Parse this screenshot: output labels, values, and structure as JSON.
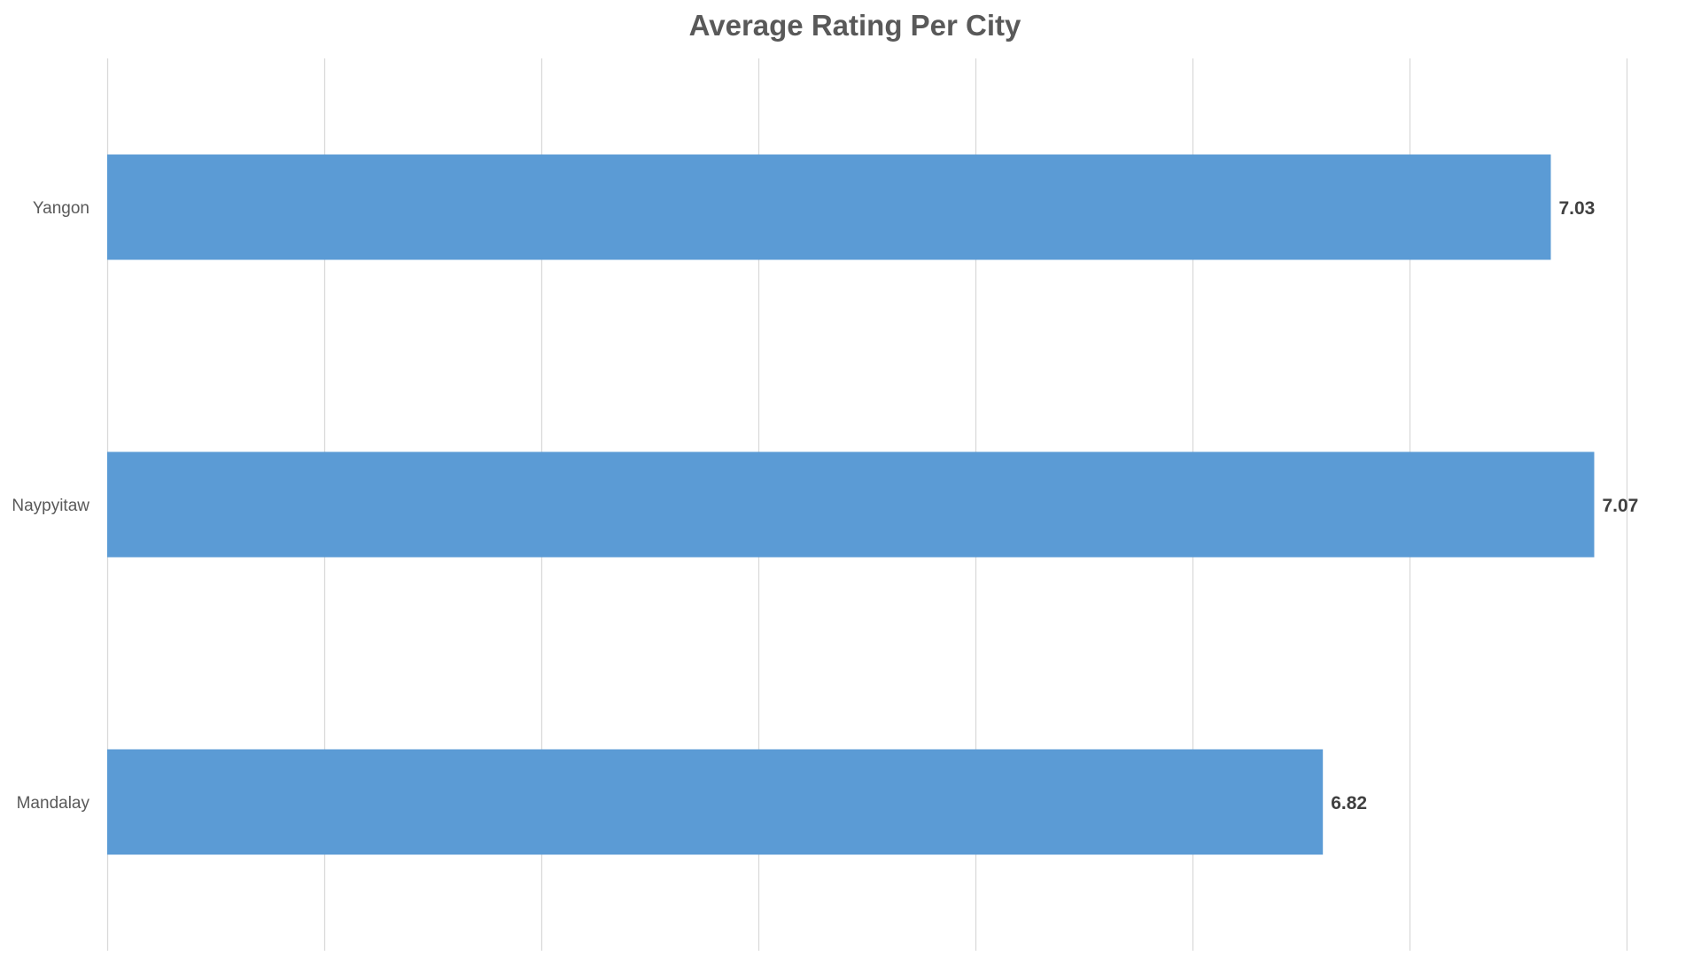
{
  "chart_data": {
    "type": "bar",
    "orientation": "horizontal",
    "title": "Average Rating Per City",
    "xlabel": "",
    "ylabel": "",
    "categories": [
      "Yangon",
      "Naypyitaw",
      "Mandalay"
    ],
    "values": [
      7.03,
      7.07,
      6.82
    ],
    "data_labels": [
      "7.03",
      "7.07",
      "6.82"
    ],
    "xlim": [
      5.7,
      7.17
    ],
    "gridlines": [
      5.7,
      5.9,
      6.1,
      6.3,
      6.5,
      6.7,
      6.9,
      7.1
    ],
    "grid": true,
    "legend": "none",
    "tick_labels_x": false,
    "colors": {
      "bar": "#5B9BD5",
      "grid": "#D9D9D9",
      "title": "#595959",
      "category_label": "#595959",
      "data_label": "#404040"
    }
  }
}
